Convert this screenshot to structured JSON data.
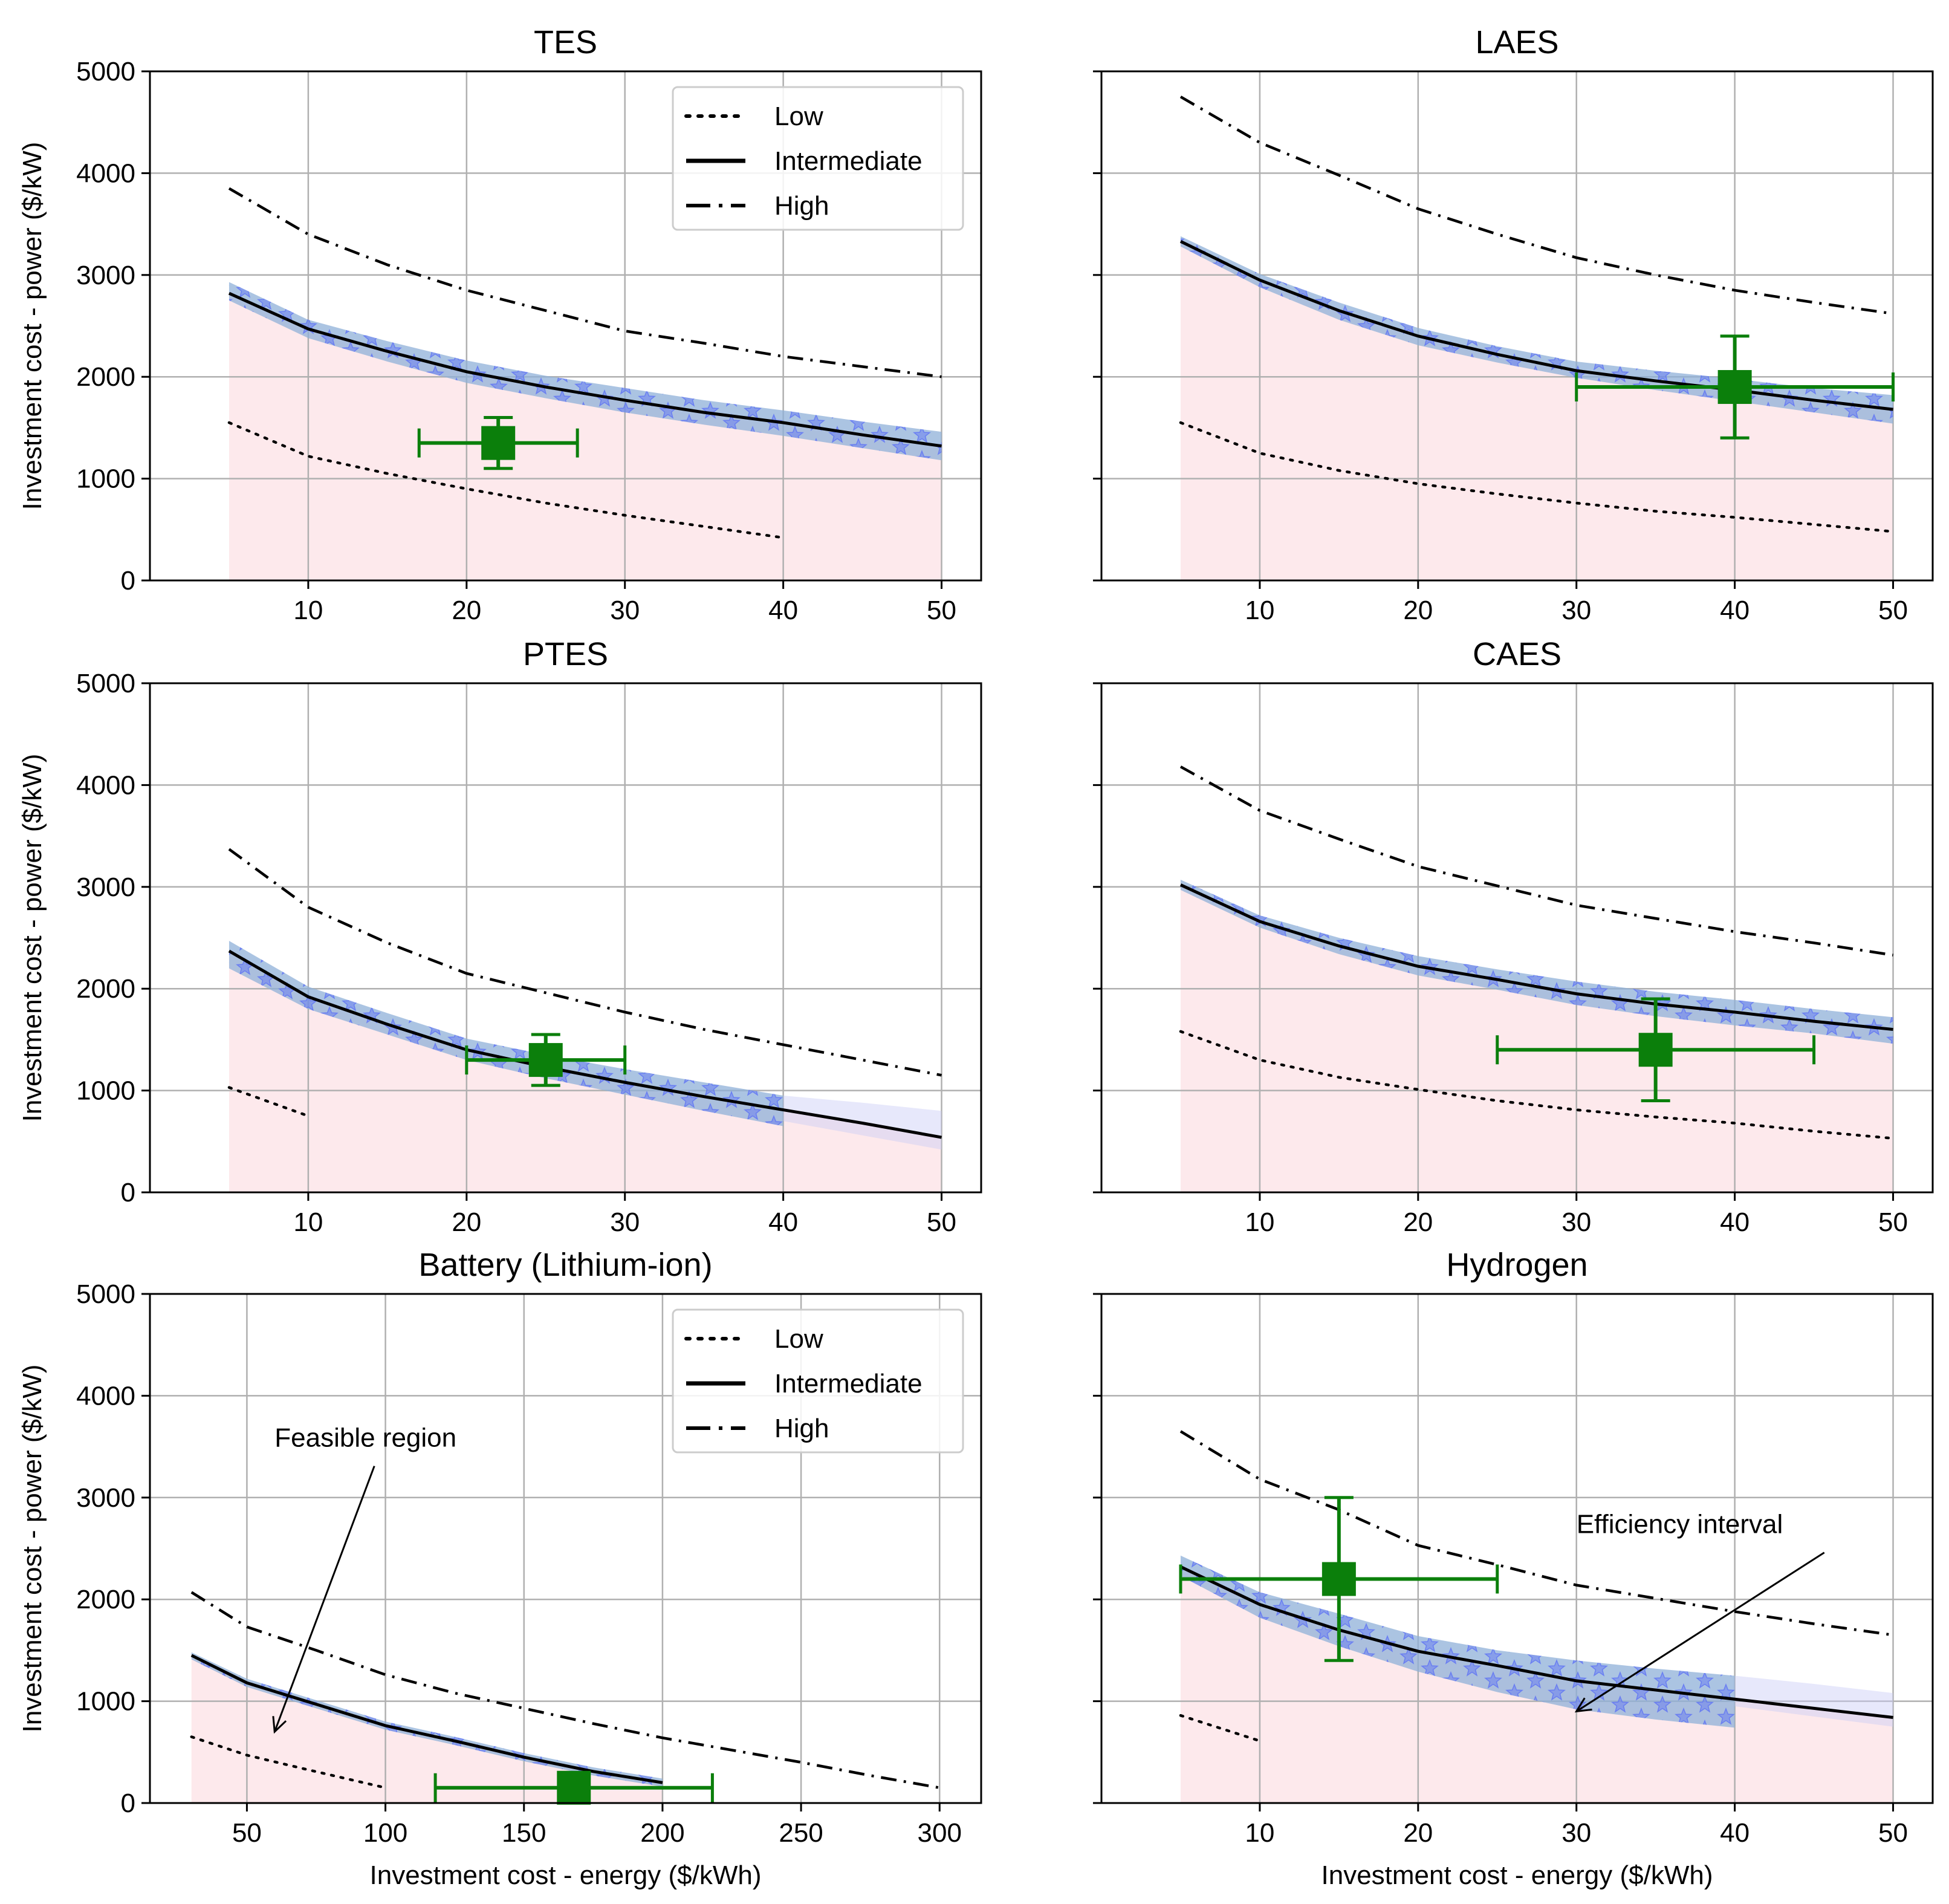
{
  "figure": {
    "ylabel": "Investment cost - power ($/kW)",
    "xlabel": "Investment cost - energy ($/kWh)",
    "legend": [
      "Low",
      "Intermediate",
      "High"
    ],
    "colors": {
      "feasible": "#fde9ec",
      "band": "#8fb0d8",
      "stars": "#5b6ef5",
      "marker": "#0b7f0b",
      "grid": "#b0b0b0",
      "line": "#000000"
    },
    "annotations": {
      "feasible": "Feasible region",
      "efficiency": "Efficiency interval"
    }
  },
  "chart_data": [
    {
      "type": "line",
      "title": "TES",
      "xlim": [
        0,
        52.5
      ],
      "ylim": [
        0,
        5000
      ],
      "xticks": [
        10,
        20,
        30,
        40,
        50
      ],
      "yticks": [
        0,
        1000,
        2000,
        3000,
        4000,
        5000
      ],
      "legend": true,
      "series": [
        {
          "name": "Low",
          "x": [
            5,
            10,
            15,
            20,
            25,
            30,
            35,
            40
          ],
          "y": [
            1550,
            1220,
            1050,
            900,
            760,
            640,
            530,
            420
          ]
        },
        {
          "name": "Intermediate",
          "x": [
            5,
            10,
            15,
            20,
            25,
            30,
            35,
            40,
            45,
            50
          ],
          "y": [
            2820,
            2470,
            2250,
            2050,
            1900,
            1770,
            1650,
            1550,
            1430,
            1320
          ]
        },
        {
          "name": "High",
          "x": [
            5,
            10,
            15,
            20,
            25,
            30,
            35,
            40,
            45,
            50
          ],
          "y": [
            3850,
            3400,
            3100,
            2850,
            2650,
            2450,
            2330,
            2200,
            2100,
            2000
          ]
        }
      ],
      "band": {
        "x": [
          5,
          10,
          15,
          20,
          25,
          30,
          35,
          40,
          45,
          50
        ],
        "lower": [
          2750,
          2380,
          2150,
          1940,
          1790,
          1650,
          1530,
          1420,
          1300,
          1180
        ],
        "upper": [
          2930,
          2560,
          2350,
          2160,
          2010,
          1890,
          1770,
          1670,
          1560,
          1460
        ]
      },
      "feasible": {
        "x": [
          5,
          10,
          15,
          20,
          25,
          30,
          35,
          40,
          45,
          50
        ],
        "y": [
          2820,
          2470,
          2250,
          2050,
          1900,
          1770,
          1650,
          1550,
          1430,
          1320
        ]
      },
      "marker": {
        "x": 22,
        "y": 1350,
        "xerr": [
          17,
          27
        ],
        "yerr": [
          1100,
          1600
        ]
      }
    },
    {
      "type": "line",
      "title": "LAES",
      "xlim": [
        0,
        52.5
      ],
      "ylim": [
        0,
        5000
      ],
      "xticks": [
        10,
        20,
        30,
        40,
        50
      ],
      "yticks": [
        0,
        1000,
        2000,
        3000,
        4000,
        5000
      ],
      "legend": false,
      "series": [
        {
          "name": "Low",
          "x": [
            5,
            10,
            15,
            20,
            25,
            30,
            35,
            40,
            45,
            50
          ],
          "y": [
            1550,
            1250,
            1080,
            950,
            850,
            760,
            680,
            620,
            550,
            480
          ]
        },
        {
          "name": "Intermediate",
          "x": [
            5,
            10,
            15,
            20,
            25,
            30,
            35,
            40,
            45,
            50
          ],
          "y": [
            3330,
            2950,
            2650,
            2400,
            2220,
            2060,
            1960,
            1870,
            1770,
            1680
          ]
        },
        {
          "name": "High",
          "x": [
            5,
            10,
            15,
            20,
            25,
            30,
            35,
            40,
            45,
            50
          ],
          "y": [
            4750,
            4300,
            3980,
            3650,
            3400,
            3170,
            3000,
            2850,
            2730,
            2620
          ]
        }
      ],
      "band": {
        "x": [
          5,
          10,
          15,
          20,
          25,
          30,
          35,
          40,
          45,
          50
        ],
        "lower": [
          3280,
          2880,
          2560,
          2310,
          2140,
          1990,
          1870,
          1760,
          1650,
          1540
        ],
        "upper": [
          3380,
          3010,
          2730,
          2480,
          2300,
          2150,
          2060,
          1980,
          1890,
          1820
        ]
      },
      "feasible": {
        "x": [
          5,
          10,
          15,
          20,
          25,
          30,
          35,
          40,
          45,
          50
        ],
        "y": [
          3330,
          2950,
          2650,
          2400,
          2220,
          2060,
          1960,
          1870,
          1770,
          1680
        ]
      },
      "marker": {
        "x": 40,
        "y": 1900,
        "xerr": [
          30,
          50
        ],
        "yerr": [
          1400,
          2400
        ]
      }
    },
    {
      "type": "line",
      "title": "PTES",
      "xlim": [
        0,
        52.5
      ],
      "ylim": [
        0,
        5000
      ],
      "xticks": [
        10,
        20,
        30,
        40,
        50
      ],
      "yticks": [
        0,
        1000,
        2000,
        3000,
        4000,
        5000
      ],
      "legend": false,
      "series": [
        {
          "name": "Low",
          "x": [
            5,
            10
          ],
          "y": [
            1030,
            750
          ]
        },
        {
          "name": "Intermediate",
          "x": [
            5,
            10,
            15,
            20,
            25,
            30,
            35,
            40,
            45,
            50
          ],
          "y": [
            2370,
            1920,
            1650,
            1400,
            1230,
            1080,
            940,
            810,
            680,
            540
          ]
        },
        {
          "name": "High",
          "x": [
            5,
            10,
            15,
            20,
            25,
            30,
            35,
            40,
            45,
            50
          ],
          "y": [
            3370,
            2800,
            2450,
            2150,
            1960,
            1770,
            1600,
            1450,
            1300,
            1150
          ]
        }
      ],
      "band": {
        "x": [
          5,
          10,
          15,
          20,
          25,
          30,
          35,
          40
        ],
        "lower": [
          2200,
          1800,
          1550,
          1300,
          1120,
          960,
          800,
          650
        ],
        "upper": [
          2470,
          2020,
          1760,
          1510,
          1350,
          1210,
          1080,
          950
        ]
      },
      "band_faded": {
        "x": [
          40,
          45,
          50
        ],
        "lower": [
          700,
          560,
          420
        ],
        "upper": [
          950,
          880,
          800
        ]
      },
      "feasible": {
        "x": [
          5,
          10,
          15,
          20,
          25,
          30,
          35,
          40,
          45,
          50
        ],
        "y": [
          2370,
          1920,
          1650,
          1400,
          1230,
          1080,
          940,
          810,
          680,
          540
        ]
      },
      "marker": {
        "x": 25,
        "y": 1300,
        "xerr": [
          20,
          30
        ],
        "yerr": [
          1050,
          1550
        ]
      }
    },
    {
      "type": "line",
      "title": "CAES",
      "xlim": [
        0,
        52.5
      ],
      "ylim": [
        0,
        5000
      ],
      "xticks": [
        10,
        20,
        30,
        40,
        50
      ],
      "yticks": [
        0,
        1000,
        2000,
        3000,
        4000,
        5000
      ],
      "legend": false,
      "series": [
        {
          "name": "Low",
          "x": [
            5,
            10,
            15,
            20,
            25,
            30,
            35,
            40,
            45,
            50
          ],
          "y": [
            1580,
            1300,
            1130,
            1010,
            900,
            810,
            740,
            680,
            600,
            530
          ]
        },
        {
          "name": "Intermediate",
          "x": [
            5,
            10,
            15,
            20,
            25,
            30,
            35,
            40,
            45,
            50
          ],
          "y": [
            3020,
            2660,
            2420,
            2220,
            2090,
            1950,
            1850,
            1770,
            1680,
            1600
          ]
        },
        {
          "name": "High",
          "x": [
            5,
            10,
            15,
            20,
            25,
            30,
            35,
            40,
            45,
            50
          ],
          "y": [
            4180,
            3750,
            3470,
            3200,
            3010,
            2820,
            2690,
            2560,
            2450,
            2330
          ]
        }
      ],
      "band": {
        "x": [
          5,
          10,
          15,
          20,
          25,
          30,
          35,
          40,
          45,
          50
        ],
        "lower": [
          2970,
          2600,
          2340,
          2130,
          1990,
          1840,
          1730,
          1640,
          1560,
          1460
        ]
      },
      "band_upper": [
        3070,
        2720,
        2500,
        2320,
        2190,
        2070,
        1970,
        1890,
        1800,
        1720
      ],
      "feasible": {
        "x": [
          5,
          10,
          15,
          20,
          25,
          30,
          35,
          40,
          45,
          50
        ],
        "y": [
          3020,
          2660,
          2420,
          2220,
          2090,
          1950,
          1850,
          1770,
          1680,
          1600
        ]
      },
      "marker": {
        "x": 35,
        "y": 1400,
        "xerr": [
          25,
          45
        ],
        "yerr": [
          900,
          1900
        ]
      }
    },
    {
      "type": "line",
      "title": "Battery (Lithium-ion)",
      "xlim": [
        15,
        315
      ],
      "ylim": [
        0,
        5000
      ],
      "xticks": [
        50,
        100,
        150,
        200,
        250,
        300
      ],
      "yticks": [
        0,
        1000,
        2000,
        3000,
        4000,
        5000
      ],
      "legend": true,
      "xlabel": true,
      "series": [
        {
          "name": "Low",
          "x": [
            30,
            50,
            70,
            100
          ],
          "y": [
            650,
            470,
            340,
            150
          ]
        },
        {
          "name": "Intermediate",
          "x": [
            30,
            50,
            75,
            100,
            125,
            150,
            175,
            200
          ],
          "y": [
            1450,
            1180,
            970,
            760,
            610,
            450,
            310,
            200
          ]
        },
        {
          "name": "High",
          "x": [
            30,
            50,
            75,
            100,
            125,
            150,
            175,
            200,
            225,
            250,
            275,
            300
          ],
          "y": [
            2070,
            1730,
            1500,
            1260,
            1080,
            930,
            780,
            640,
            520,
            400,
            270,
            150
          ]
        }
      ],
      "band": {
        "x": [
          30,
          50,
          75,
          100,
          125,
          150,
          175,
          200
        ],
        "lower": [
          1410,
          1140,
          930,
          720,
          570,
          410,
          270,
          160
        ],
        "upper": [
          1480,
          1220,
          1010,
          800,
          650,
          490,
          350,
          240
        ]
      },
      "feasible": {
        "x": [
          30,
          50,
          75,
          100,
          125,
          150,
          175,
          200
        ],
        "y": [
          1450,
          1180,
          970,
          760,
          610,
          450,
          310,
          200
        ]
      },
      "marker": {
        "x": 168,
        "y": 150,
        "xerr": [
          118,
          218
        ],
        "yerr": [
          150,
          150
        ]
      },
      "annotation": {
        "key": "feasible",
        "text_x": 60,
        "text_y": 3500,
        "arrow_to_x": 60,
        "arrow_to_y": 700
      }
    },
    {
      "type": "line",
      "title": "Hydrogen",
      "xlim": [
        0,
        52.5
      ],
      "ylim": [
        0,
        5000
      ],
      "xticks": [
        10,
        20,
        30,
        40,
        50
      ],
      "yticks": [
        0,
        1000,
        2000,
        3000,
        4000,
        5000
      ],
      "legend": false,
      "xlabel": true,
      "series": [
        {
          "name": "Low",
          "x": [
            5,
            10
          ],
          "y": [
            860,
            610
          ]
        },
        {
          "name": "Intermediate",
          "x": [
            5,
            10,
            15,
            20,
            25,
            30,
            35,
            40,
            45,
            50
          ],
          "y": [
            2320,
            1950,
            1700,
            1490,
            1350,
            1200,
            1110,
            1020,
            930,
            840
          ]
        },
        {
          "name": "High",
          "x": [
            5,
            10,
            15,
            20,
            25,
            30,
            35,
            40,
            45,
            50
          ],
          "y": [
            3650,
            3180,
            2880,
            2530,
            2340,
            2140,
            2010,
            1880,
            1760,
            1650
          ]
        }
      ],
      "band": {
        "x": [
          5,
          10,
          15,
          20,
          25,
          30,
          35,
          40
        ],
        "lower": [
          2230,
          1820,
          1540,
          1290,
          1090,
          920,
          820,
          740
        ],
        "upper": [
          2430,
          2070,
          1860,
          1640,
          1500,
          1400,
          1320,
          1250
        ]
      },
      "band_faded": {
        "x": [
          40,
          45,
          50
        ],
        "lower": [
          950,
          850,
          750
        ],
        "upper": [
          1250,
          1170,
          1080
        ]
      },
      "feasible": {
        "x": [
          5,
          10,
          15,
          20,
          25,
          30,
          35,
          40,
          45,
          50
        ],
        "y": [
          2320,
          1950,
          1700,
          1490,
          1350,
          1200,
          1110,
          1020,
          930,
          840
        ]
      },
      "marker": {
        "x": 15,
        "y": 2200,
        "xerr": [
          5,
          25
        ],
        "yerr": [
          1400,
          3000
        ]
      },
      "annotation": {
        "key": "efficiency",
        "text_x": 30,
        "text_y": 2650,
        "arrow_to_x": 30,
        "arrow_to_y": 900
      }
    }
  ]
}
